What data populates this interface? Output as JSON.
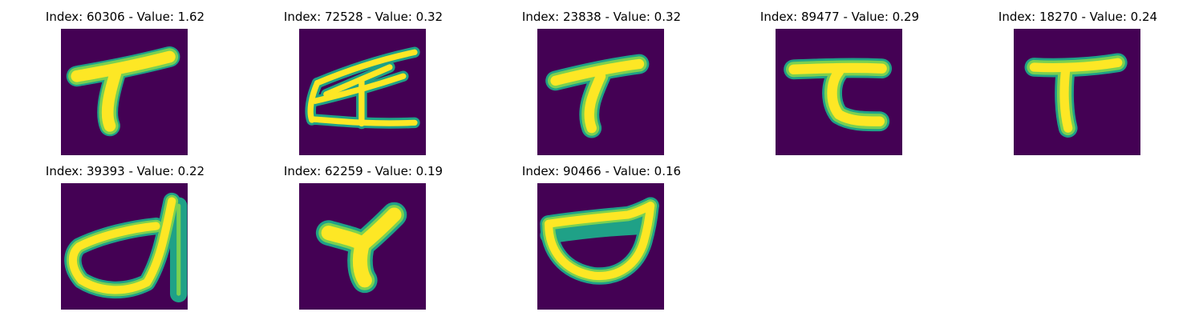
{
  "colors": {
    "background": "#440154",
    "stroke_edge": "#1fa187",
    "stroke_mid": "#7ad151",
    "stroke_core": "#fde725"
  },
  "panels": [
    {
      "index": "60306",
      "value": "1.62",
      "title": "Index: 60306 - Value: 1.62",
      "shape": "T-shape-thick"
    },
    {
      "index": "72528",
      "value": "0.32",
      "title": "Index: 72528 - Value: 0.32",
      "shape": "sled-outline"
    },
    {
      "index": "23838",
      "value": "0.32",
      "title": "Index: 23838 - Value: 0.32",
      "shape": "T-shape-curved"
    },
    {
      "index": "89477",
      "value": "0.29",
      "title": "Index: 89477 - Value: 0.29",
      "shape": "bracket-shape"
    },
    {
      "index": "18270",
      "value": "0.24",
      "title": "Index: 18270 - Value: 0.24",
      "shape": "T-shape-straight"
    },
    {
      "index": "39393",
      "value": "0.22",
      "title": "Index: 39393 - Value: 0.22",
      "shape": "loop-with-stem"
    },
    {
      "index": "62259",
      "value": "0.19",
      "title": "Index: 62259 - Value: 0.19",
      "shape": "blurred-Y"
    },
    {
      "index": "90466",
      "value": "0.16",
      "title": "Index: 90466 - Value: 0.16",
      "shape": "bowl-shape"
    }
  ]
}
